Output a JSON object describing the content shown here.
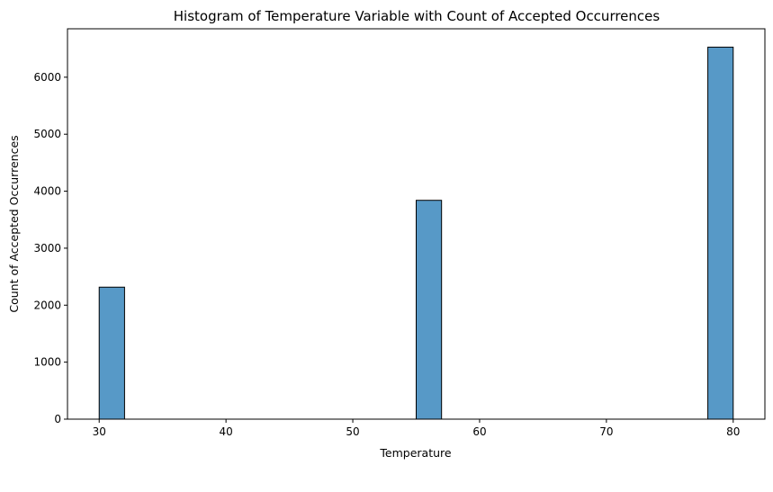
{
  "chart_data": {
    "type": "bar",
    "title": "Histogram of Temperature Variable with Count of Accepted Occurrences",
    "xlabel": "Temperature",
    "ylabel": "Count of Accepted Occurrences",
    "xlim": [
      27.5,
      82.5
    ],
    "ylim": [
      0,
      6850
    ],
    "xticks": [
      30,
      40,
      50,
      60,
      70,
      80
    ],
    "yticks": [
      0,
      1000,
      2000,
      3000,
      4000,
      5000,
      6000
    ],
    "bins": [
      {
        "x0": 30,
        "x1": 32,
        "count": 2316
      },
      {
        "x0": 55,
        "x1": 57,
        "count": 3840
      },
      {
        "x0": 78,
        "x1": 80,
        "count": 6528
      }
    ],
    "grid": false,
    "color": "#5799c7"
  }
}
